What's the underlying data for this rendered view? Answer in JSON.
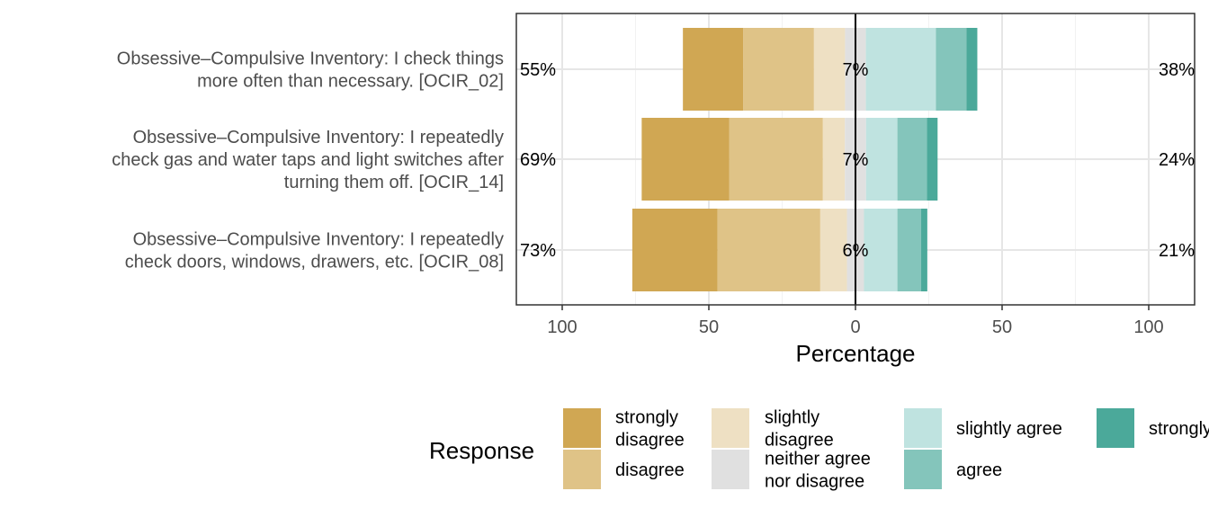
{
  "chart_data": {
    "type": "bar",
    "subtype": "diverging-stacked-likert",
    "xlabel": "Percentage",
    "xlim": [
      -100,
      100
    ],
    "xticks": [
      -100,
      -50,
      0,
      50,
      100
    ],
    "xtick_labels": [
      "100",
      "50",
      "0",
      "50",
      "100"
    ],
    "grid": true,
    "legend_position": "bottom",
    "legend_title": "Response",
    "levels": [
      {
        "name": "strongly disagree",
        "lines": [
          "strongly",
          "disagree"
        ],
        "color": "#D0A753"
      },
      {
        "name": "disagree",
        "lines": [
          "disagree"
        ],
        "color": "#DFC387"
      },
      {
        "name": "slightly disagree",
        "lines": [
          "slightly",
          "disagree"
        ],
        "color": "#EEE0C3"
      },
      {
        "name": "neither agree nor disagree",
        "lines": [
          "neither agree",
          "nor disagree"
        ],
        "color": "#E0E0E0"
      },
      {
        "name": "slightly agree",
        "lines": [
          "slightly agree"
        ],
        "color": "#BFE3E0"
      },
      {
        "name": "agree",
        "lines": [
          "agree"
        ],
        "color": "#84C5BB"
      },
      {
        "name": "strongly agree",
        "lines": [
          "strongly agree"
        ],
        "color": "#4BA99A"
      }
    ],
    "items": [
      {
        "label_lines": [
          "Obsessive–Compulsive Inventory: I check things",
          "more often than necessary. [OCIR_02]"
        ],
        "values": [
          20.6,
          24.1,
          10.6,
          7.1,
          23.9,
          10.4,
          3.7
        ],
        "left_label": "55%",
        "center_label": "7%",
        "right_label": "38%"
      },
      {
        "label_lines": [
          "Obsessive–Compulsive Inventory: I repeatedly",
          "check gas and water taps and light switches after",
          "turning them off. [OCIR_14]"
        ],
        "values": [
          29.9,
          31.9,
          7.5,
          7.2,
          10.7,
          10.1,
          3.6
        ],
        "left_label": "69%",
        "center_label": "7%",
        "right_label": "24%"
      },
      {
        "label_lines": [
          "Obsessive–Compulsive Inventory: I repeatedly",
          "check doors, windows, drawers, etc. [OCIR_08]"
        ],
        "values": [
          29.1,
          35.0,
          9.1,
          5.8,
          11.4,
          8.1,
          2.1
        ],
        "left_label": "73%",
        "center_label": "6%",
        "right_label": "21%"
      }
    ]
  }
}
